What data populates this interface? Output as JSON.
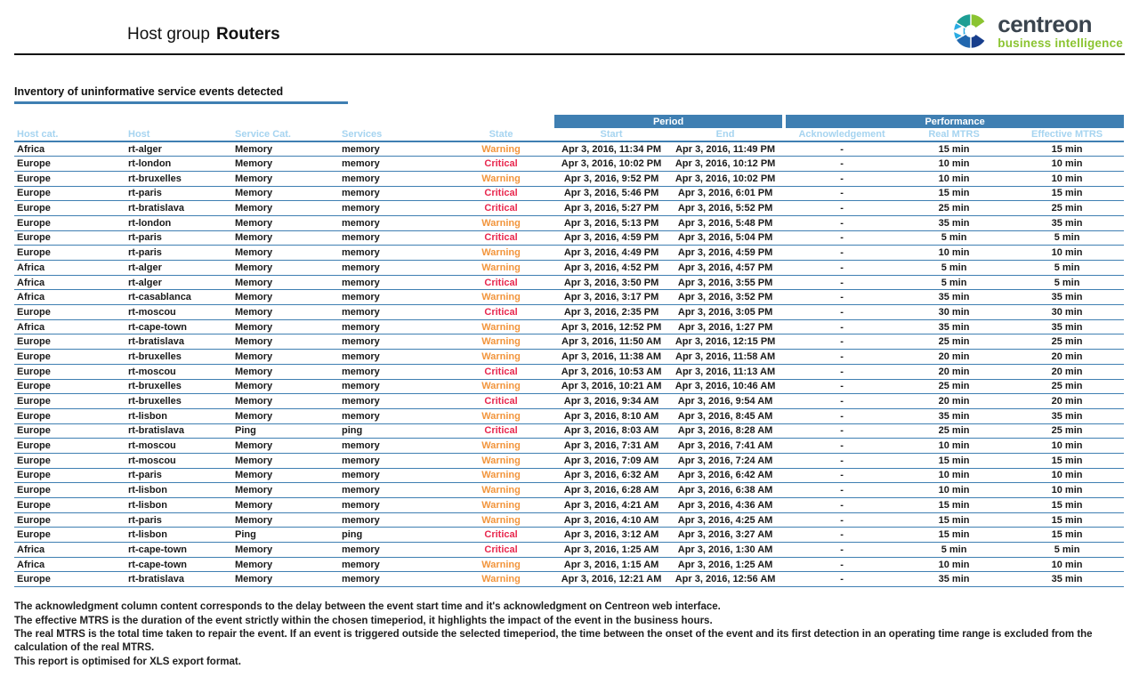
{
  "header": {
    "title_prefix": "Host group",
    "title_bold": "Routers"
  },
  "logo": {
    "brand": "centreon",
    "tagline": "business intelligence"
  },
  "section": {
    "title": "Inventory of uninformative service events detected"
  },
  "table": {
    "group_headers": {
      "period": "Period",
      "performance": "Performance"
    },
    "columns": [
      "Host cat.",
      "Host",
      "Service Cat.",
      "Services",
      "State",
      "Start",
      "End",
      "Acknowledgement",
      "Real MTRS",
      "Effective MTRS"
    ],
    "column_keys": [
      "host-cat",
      "host",
      "service-cat",
      "services",
      "state",
      "start",
      "end",
      "acknowledgement",
      "real-mtrs",
      "effective-mtrs"
    ],
    "rows": [
      [
        "Africa",
        "rt-alger",
        "Memory",
        "memory",
        "Warning",
        "Apr 3, 2016, 11:34 PM",
        "Apr 3, 2016, 11:49 PM",
        "-",
        "15 min",
        "15 min"
      ],
      [
        "Europe",
        "rt-london",
        "Memory",
        "memory",
        "Critical",
        "Apr 3, 2016, 10:02 PM",
        "Apr 3, 2016, 10:12 PM",
        "-",
        "10 min",
        "10 min"
      ],
      [
        "Europe",
        "rt-bruxelles",
        "Memory",
        "memory",
        "Warning",
        "Apr 3, 2016, 9:52 PM",
        "Apr 3, 2016, 10:02 PM",
        "-",
        "10 min",
        "10 min"
      ],
      [
        "Europe",
        "rt-paris",
        "Memory",
        "memory",
        "Critical",
        "Apr 3, 2016, 5:46 PM",
        "Apr 3, 2016, 6:01 PM",
        "-",
        "15 min",
        "15 min"
      ],
      [
        "Europe",
        "rt-bratislava",
        "Memory",
        "memory",
        "Critical",
        "Apr 3, 2016, 5:27 PM",
        "Apr 3, 2016, 5:52 PM",
        "-",
        "25 min",
        "25 min"
      ],
      [
        "Europe",
        "rt-london",
        "Memory",
        "memory",
        "Warning",
        "Apr 3, 2016, 5:13 PM",
        "Apr 3, 2016, 5:48 PM",
        "-",
        "35 min",
        "35 min"
      ],
      [
        "Europe",
        "rt-paris",
        "Memory",
        "memory",
        "Critical",
        "Apr 3, 2016, 4:59 PM",
        "Apr 3, 2016, 5:04 PM",
        "-",
        "5 min",
        "5 min"
      ],
      [
        "Europe",
        "rt-paris",
        "Memory",
        "memory",
        "Warning",
        "Apr 3, 2016, 4:49 PM",
        "Apr 3, 2016, 4:59 PM",
        "-",
        "10 min",
        "10 min"
      ],
      [
        "Africa",
        "rt-alger",
        "Memory",
        "memory",
        "Warning",
        "Apr 3, 2016, 4:52 PM",
        "Apr 3, 2016, 4:57 PM",
        "-",
        "5 min",
        "5 min"
      ],
      [
        "Africa",
        "rt-alger",
        "Memory",
        "memory",
        "Critical",
        "Apr 3, 2016, 3:50 PM",
        "Apr 3, 2016, 3:55 PM",
        "-",
        "5 min",
        "5 min"
      ],
      [
        "Africa",
        "rt-casablanca",
        "Memory",
        "memory",
        "Warning",
        "Apr 3, 2016, 3:17 PM",
        "Apr 3, 2016, 3:52 PM",
        "-",
        "35 min",
        "35 min"
      ],
      [
        "Europe",
        "rt-moscou",
        "Memory",
        "memory",
        "Critical",
        "Apr 3, 2016, 2:35 PM",
        "Apr 3, 2016, 3:05 PM",
        "-",
        "30 min",
        "30 min"
      ],
      [
        "Africa",
        "rt-cape-town",
        "Memory",
        "memory",
        "Warning",
        "Apr 3, 2016, 12:52 PM",
        "Apr 3, 2016, 1:27 PM",
        "-",
        "35 min",
        "35 min"
      ],
      [
        "Europe",
        "rt-bratislava",
        "Memory",
        "memory",
        "Warning",
        "Apr 3, 2016, 11:50 AM",
        "Apr 3, 2016, 12:15 PM",
        "-",
        "25 min",
        "25 min"
      ],
      [
        "Europe",
        "rt-bruxelles",
        "Memory",
        "memory",
        "Warning",
        "Apr 3, 2016, 11:38 AM",
        "Apr 3, 2016, 11:58 AM",
        "-",
        "20 min",
        "20 min"
      ],
      [
        "Europe",
        "rt-moscou",
        "Memory",
        "memory",
        "Critical",
        "Apr 3, 2016, 10:53 AM",
        "Apr 3, 2016, 11:13 AM",
        "-",
        "20 min",
        "20 min"
      ],
      [
        "Europe",
        "rt-bruxelles",
        "Memory",
        "memory",
        "Warning",
        "Apr 3, 2016, 10:21 AM",
        "Apr 3, 2016, 10:46 AM",
        "-",
        "25 min",
        "25 min"
      ],
      [
        "Europe",
        "rt-bruxelles",
        "Memory",
        "memory",
        "Critical",
        "Apr 3, 2016, 9:34 AM",
        "Apr 3, 2016, 9:54 AM",
        "-",
        "20 min",
        "20 min"
      ],
      [
        "Europe",
        "rt-lisbon",
        "Memory",
        "memory",
        "Warning",
        "Apr 3, 2016, 8:10 AM",
        "Apr 3, 2016, 8:45 AM",
        "-",
        "35 min",
        "35 min"
      ],
      [
        "Europe",
        "rt-bratislava",
        "Ping",
        "ping",
        "Critical",
        "Apr 3, 2016, 8:03 AM",
        "Apr 3, 2016, 8:28 AM",
        "-",
        "25 min",
        "25 min"
      ],
      [
        "Europe",
        "rt-moscou",
        "Memory",
        "memory",
        "Warning",
        "Apr 3, 2016, 7:31 AM",
        "Apr 3, 2016, 7:41 AM",
        "-",
        "10 min",
        "10 min"
      ],
      [
        "Europe",
        "rt-moscou",
        "Memory",
        "memory",
        "Warning",
        "Apr 3, 2016, 7:09 AM",
        "Apr 3, 2016, 7:24 AM",
        "-",
        "15 min",
        "15 min"
      ],
      [
        "Europe",
        "rt-paris",
        "Memory",
        "memory",
        "Warning",
        "Apr 3, 2016, 6:32 AM",
        "Apr 3, 2016, 6:42 AM",
        "-",
        "10 min",
        "10 min"
      ],
      [
        "Europe",
        "rt-lisbon",
        "Memory",
        "memory",
        "Warning",
        "Apr 3, 2016, 6:28 AM",
        "Apr 3, 2016, 6:38 AM",
        "-",
        "10 min",
        "10 min"
      ],
      [
        "Europe",
        "rt-lisbon",
        "Memory",
        "memory",
        "Warning",
        "Apr 3, 2016, 4:21 AM",
        "Apr 3, 2016, 4:36 AM",
        "-",
        "15 min",
        "15 min"
      ],
      [
        "Europe",
        "rt-paris",
        "Memory",
        "memory",
        "Warning",
        "Apr 3, 2016, 4:10 AM",
        "Apr 3, 2016, 4:25 AM",
        "-",
        "15 min",
        "15 min"
      ],
      [
        "Europe",
        "rt-lisbon",
        "Ping",
        "ping",
        "Critical",
        "Apr 3, 2016, 3:12 AM",
        "Apr 3, 2016, 3:27 AM",
        "-",
        "15 min",
        "15 min"
      ],
      [
        "Africa",
        "rt-cape-town",
        "Memory",
        "memory",
        "Critical",
        "Apr 3, 2016, 1:25 AM",
        "Apr 3, 2016, 1:30 AM",
        "-",
        "5 min",
        "5 min"
      ],
      [
        "Africa",
        "rt-cape-town",
        "Memory",
        "memory",
        "Warning",
        "Apr 3, 2016, 1:15 AM",
        "Apr 3, 2016, 1:25 AM",
        "-",
        "10 min",
        "10 min"
      ],
      [
        "Europe",
        "rt-bratislava",
        "Memory",
        "memory",
        "Warning",
        "Apr 3, 2016, 12:21 AM",
        "Apr 3, 2016, 12:56 AM",
        "-",
        "35 min",
        "35 min"
      ]
    ]
  },
  "footer": {
    "lines": [
      "The acknowledgment column content corresponds to the delay between the event start time and it's acknowledgment on Centreon web interface.",
      "The effective MTRS is the duration of the event strictly within the chosen timeperiod, it highlights the impact of the event in the business hours.",
      "The real MTRS is the total time taken to repair the event. If an event is triggered outside the selected timeperiod, the time between the onset of the event and its first detection in an operating time range is excluded from the calculation of the real MTRS.",
      "This report is optimised for XLS export format."
    ]
  },
  "colors": {
    "accent_blue": "#3f7fb2",
    "subheader_text": "#a6d4f0",
    "warning": "#f2953c",
    "critical": "#e8284e",
    "logo_dark": "#3a444e",
    "logo_green": "#8bc431"
  }
}
